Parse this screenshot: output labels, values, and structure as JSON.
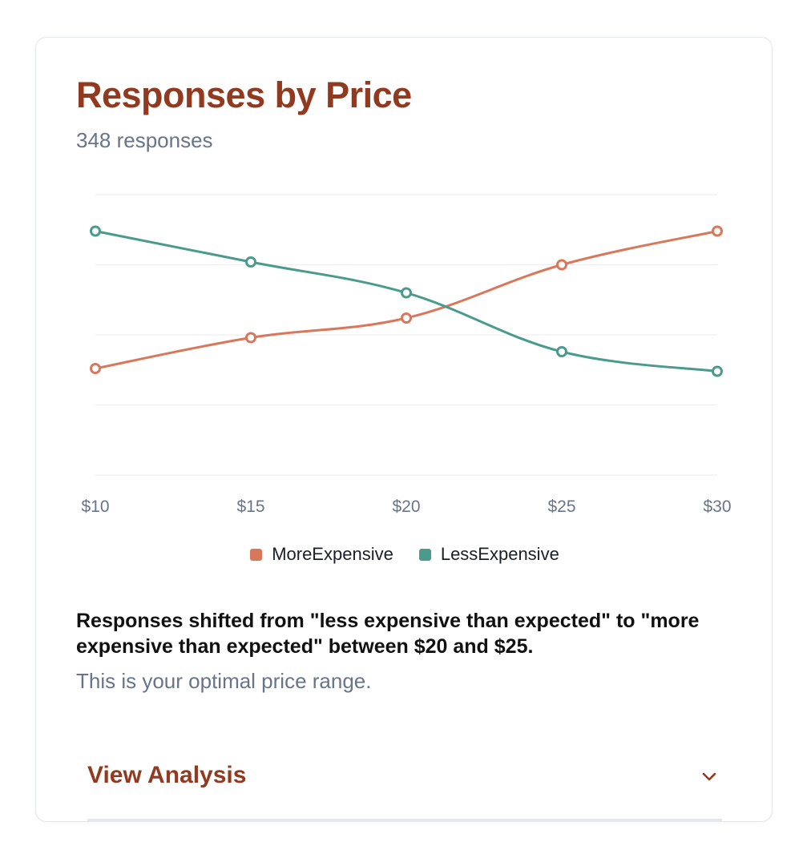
{
  "card": {
    "title": "Responses by Price",
    "subtitle": "348 responses",
    "insight": "Responses shifted from \"less expensive than expected\" to \"more expensive than expected\" between $20 and $25.",
    "insight_note": "This is your optimal price range.",
    "accordion": {
      "label": "View Analysis",
      "icon": "chevron-down-icon"
    }
  },
  "colors": {
    "title": "#923a1f",
    "more": "#d9775a",
    "less": "#4a9a8e",
    "muted": "#67758a",
    "grid": "#eeeff2"
  },
  "chart_data": {
    "type": "line",
    "categories": [
      "$10",
      "$15",
      "$20",
      "$25",
      "$30"
    ],
    "ylim": [
      0,
      100
    ],
    "grid": true,
    "legend_position": "bottom-center",
    "series": [
      {
        "name": "MoreExpensive",
        "color": "#d9775a",
        "values": [
          38,
          49,
          56,
          75,
          87
        ]
      },
      {
        "name": "LessExpensive",
        "color": "#4a9a8e",
        "values": [
          87,
          76,
          65,
          44,
          37
        ]
      }
    ]
  }
}
